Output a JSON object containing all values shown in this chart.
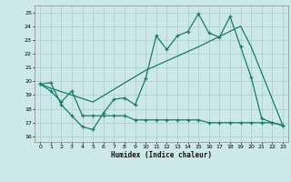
{
  "xlabel": "Humidex (Indice chaleur)",
  "bg_color": "#cce8e8",
  "grid_color": "#aacccc",
  "line_color": "#1a7a6e",
  "x_ticks": [
    0,
    1,
    2,
    3,
    4,
    5,
    6,
    7,
    8,
    9,
    10,
    11,
    12,
    13,
    14,
    15,
    16,
    17,
    18,
    19,
    20,
    21,
    22,
    23
  ],
  "y_ticks": [
    16,
    17,
    18,
    19,
    20,
    21,
    22,
    23,
    24,
    25
  ],
  "xlim": [
    -0.5,
    23.5
  ],
  "ylim": [
    15.6,
    25.5
  ],
  "series1_x": [
    0,
    1,
    2,
    3,
    4,
    5,
    6,
    7,
    8,
    9,
    10,
    11,
    12,
    13,
    14,
    15,
    16,
    17,
    18,
    19,
    20,
    21,
    22,
    23
  ],
  "series1_y": [
    19.8,
    19.9,
    18.3,
    17.5,
    16.7,
    16.5,
    17.7,
    18.7,
    18.8,
    18.3,
    20.2,
    23.3,
    22.3,
    23.3,
    23.6,
    24.9,
    23.5,
    23.2,
    24.7,
    22.5,
    20.3,
    17.3,
    17.0,
    16.8
  ],
  "series2_x": [
    0,
    1,
    2,
    3,
    4,
    5,
    6,
    7,
    8,
    9,
    10,
    11,
    12,
    13,
    14,
    15,
    16,
    17,
    18,
    19,
    20,
    21,
    22,
    23
  ],
  "series2_y": [
    19.8,
    19.3,
    18.5,
    19.3,
    17.5,
    17.5,
    17.5,
    17.5,
    17.5,
    17.2,
    17.2,
    17.2,
    17.2,
    17.2,
    17.2,
    17.2,
    17.0,
    17.0,
    17.0,
    17.0,
    17.0,
    17.0,
    17.0,
    16.8
  ],
  "series3_x": [
    0,
    1,
    5,
    10,
    15,
    19,
    20,
    23
  ],
  "series3_y": [
    19.8,
    19.5,
    18.5,
    20.8,
    22.5,
    24.0,
    22.5,
    16.8
  ]
}
